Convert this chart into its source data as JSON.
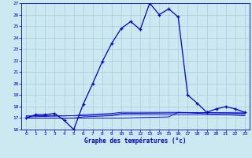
{
  "bg_color": "#cce8f0",
  "grid_color": "#aaccdd",
  "line_color": "#0000cc",
  "title": "Graphe des températures (°c)",
  "xlim": [
    -0.5,
    23.5
  ],
  "ylim": [
    16,
    27
  ],
  "xticks": [
    0,
    1,
    2,
    3,
    4,
    5,
    6,
    7,
    8,
    9,
    10,
    11,
    12,
    13,
    14,
    15,
    16,
    17,
    18,
    19,
    20,
    21,
    22,
    23
  ],
  "yticks": [
    16,
    17,
    18,
    19,
    20,
    21,
    22,
    23,
    24,
    25,
    26,
    27
  ],
  "main_x": [
    0,
    1,
    2,
    3,
    4,
    5,
    6,
    7,
    8,
    9,
    10,
    11,
    12,
    13,
    14,
    15,
    16,
    17,
    18,
    19,
    20,
    21,
    22,
    23
  ],
  "main_y": [
    17.0,
    17.3,
    17.3,
    17.4,
    16.8,
    16.0,
    18.2,
    20.0,
    21.9,
    23.5,
    24.8,
    25.4,
    24.7,
    27.0,
    26.0,
    26.5,
    25.8,
    19.0,
    18.3,
    17.5,
    17.8,
    18.0,
    17.8,
    17.5
  ],
  "line2_x": [
    0,
    5,
    6,
    9,
    10,
    23
  ],
  "line2_y": [
    17.0,
    17.0,
    17.1,
    17.2,
    17.3,
    17.3
  ],
  "line3_x": [
    0,
    5,
    6,
    9,
    10,
    23
  ],
  "line3_y": [
    17.1,
    17.2,
    17.2,
    17.3,
    17.4,
    17.5
  ],
  "line4_x": [
    0,
    5,
    6,
    9,
    10,
    15,
    16,
    23
  ],
  "line4_y": [
    17.2,
    17.2,
    17.3,
    17.4,
    17.5,
    17.5,
    17.5,
    17.4
  ],
  "line5_x": [
    0,
    10,
    15,
    16,
    23
  ],
  "line5_y": [
    17.0,
    17.0,
    17.1,
    17.5,
    17.2
  ]
}
